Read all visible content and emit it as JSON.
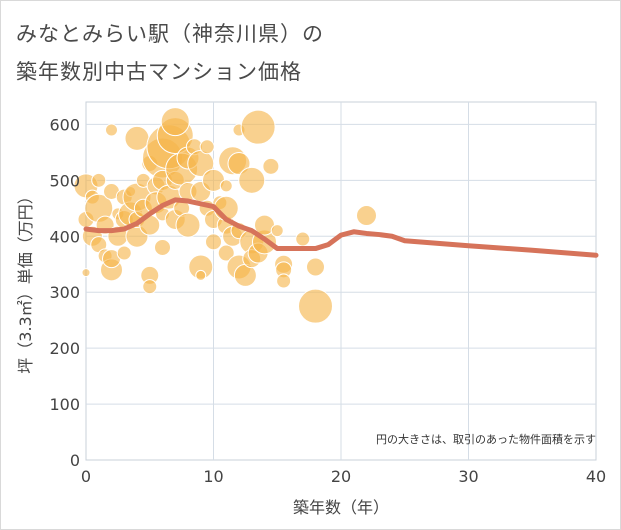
{
  "title_line1": "みなとみらい駅（神奈川県）の",
  "title_line2": "築年数別中古マンション価格",
  "chart_data": {
    "type": "scatter",
    "xlabel": "築年数（年）",
    "ylabel": "坪（3.3㎡）単価（万円）",
    "xlim": [
      0,
      40
    ],
    "ylim": [
      0,
      640
    ],
    "xticks": [
      0,
      10,
      20,
      30,
      40
    ],
    "yticks": [
      0,
      100,
      200,
      300,
      400,
      500,
      600
    ],
    "note": "円の大きさは、取引のあった物件面積を示す",
    "colors": {
      "bubble": "#f5b54a",
      "trend": "#d6735a",
      "grid": "#d5dde6",
      "plot_border": "#c8d0da"
    },
    "trend_line": {
      "x": [
        0,
        1,
        2,
        3,
        4,
        5,
        6,
        7,
        8,
        9,
        10,
        11,
        12,
        13,
        14,
        15,
        16,
        17,
        18,
        19,
        20,
        21,
        22,
        23,
        24,
        25,
        30,
        35,
        40
      ],
      "y": [
        413,
        410,
        410,
        413,
        423,
        440,
        455,
        465,
        463,
        458,
        453,
        430,
        418,
        410,
        395,
        378,
        378,
        378,
        378,
        385,
        402,
        408,
        405,
        403,
        400,
        392,
        383,
        375,
        366
      ]
    },
    "bubbles": [
      {
        "x": 0,
        "y": 490,
        "s": 12
      },
      {
        "x": 0,
        "y": 335,
        "s": 4
      },
      {
        "x": 0,
        "y": 430,
        "s": 8
      },
      {
        "x": 0.5,
        "y": 400,
        "s": 10
      },
      {
        "x": 0.5,
        "y": 470,
        "s": 7
      },
      {
        "x": 1,
        "y": 450,
        "s": 14
      },
      {
        "x": 1,
        "y": 385,
        "s": 8
      },
      {
        "x": 1,
        "y": 500,
        "s": 7
      },
      {
        "x": 1.5,
        "y": 420,
        "s": 9
      },
      {
        "x": 1.5,
        "y": 365,
        "s": 7
      },
      {
        "x": 2,
        "y": 340,
        "s": 11
      },
      {
        "x": 2,
        "y": 360,
        "s": 9
      },
      {
        "x": 2,
        "y": 590,
        "s": 6
      },
      {
        "x": 2,
        "y": 480,
        "s": 8
      },
      {
        "x": 2.5,
        "y": 400,
        "s": 10
      },
      {
        "x": 2.5,
        "y": 440,
        "s": 6
      },
      {
        "x": 3,
        "y": 430,
        "s": 9
      },
      {
        "x": 3,
        "y": 370,
        "s": 7
      },
      {
        "x": 3,
        "y": 470,
        "s": 8
      },
      {
        "x": 3.5,
        "y": 440,
        "s": 12
      },
      {
        "x": 3.5,
        "y": 480,
        "s": 5
      },
      {
        "x": 4,
        "y": 575,
        "s": 12
      },
      {
        "x": 4,
        "y": 470,
        "s": 14
      },
      {
        "x": 4,
        "y": 400,
        "s": 11
      },
      {
        "x": 4,
        "y": 430,
        "s": 8
      },
      {
        "x": 4.5,
        "y": 500,
        "s": 7
      },
      {
        "x": 4.5,
        "y": 450,
        "s": 9
      },
      {
        "x": 5,
        "y": 330,
        "s": 9
      },
      {
        "x": 5,
        "y": 310,
        "s": 7
      },
      {
        "x": 5,
        "y": 420,
        "s": 10
      },
      {
        "x": 5,
        "y": 530,
        "s": 8
      },
      {
        "x": 5.5,
        "y": 490,
        "s": 9
      },
      {
        "x": 5.5,
        "y": 460,
        "s": 11
      },
      {
        "x": 6,
        "y": 540,
        "s": 20
      },
      {
        "x": 6,
        "y": 500,
        "s": 10
      },
      {
        "x": 6,
        "y": 380,
        "s": 8
      },
      {
        "x": 6,
        "y": 440,
        "s": 7
      },
      {
        "x": 6.5,
        "y": 560,
        "s": 22
      },
      {
        "x": 6.5,
        "y": 470,
        "s": 12
      },
      {
        "x": 7,
        "y": 580,
        "s": 18
      },
      {
        "x": 7,
        "y": 605,
        "s": 14
      },
      {
        "x": 7,
        "y": 430,
        "s": 10
      },
      {
        "x": 7,
        "y": 500,
        "s": 9
      },
      {
        "x": 7.5,
        "y": 520,
        "s": 16
      },
      {
        "x": 7.5,
        "y": 450,
        "s": 8
      },
      {
        "x": 8,
        "y": 540,
        "s": 11
      },
      {
        "x": 8,
        "y": 420,
        "s": 12
      },
      {
        "x": 8,
        "y": 480,
        "s": 9
      },
      {
        "x": 8.5,
        "y": 560,
        "s": 8
      },
      {
        "x": 9,
        "y": 345,
        "s": 12
      },
      {
        "x": 9,
        "y": 530,
        "s": 13
      },
      {
        "x": 9,
        "y": 480,
        "s": 10
      },
      {
        "x": 9,
        "y": 330,
        "s": 5
      },
      {
        "x": 9.5,
        "y": 450,
        "s": 8
      },
      {
        "x": 9.5,
        "y": 560,
        "s": 7
      },
      {
        "x": 10,
        "y": 430,
        "s": 9
      },
      {
        "x": 10,
        "y": 390,
        "s": 8
      },
      {
        "x": 10,
        "y": 500,
        "s": 11
      },
      {
        "x": 10.5,
        "y": 460,
        "s": 7
      },
      {
        "x": 11,
        "y": 420,
        "s": 9
      },
      {
        "x": 11,
        "y": 450,
        "s": 12
      },
      {
        "x": 11,
        "y": 370,
        "s": 8
      },
      {
        "x": 11,
        "y": 490,
        "s": 6
      },
      {
        "x": 11.5,
        "y": 535,
        "s": 14
      },
      {
        "x": 11.5,
        "y": 400,
        "s": 10
      },
      {
        "x": 12,
        "y": 530,
        "s": 11
      },
      {
        "x": 12,
        "y": 345,
        "s": 12
      },
      {
        "x": 12,
        "y": 590,
        "s": 6
      },
      {
        "x": 12,
        "y": 410,
        "s": 8
      },
      {
        "x": 12.5,
        "y": 330,
        "s": 11
      },
      {
        "x": 13,
        "y": 500,
        "s": 13
      },
      {
        "x": 13,
        "y": 390,
        "s": 12
      },
      {
        "x": 13,
        "y": 360,
        "s": 9
      },
      {
        "x": 13.5,
        "y": 595,
        "s": 17
      },
      {
        "x": 13.5,
        "y": 370,
        "s": 10
      },
      {
        "x": 14,
        "y": 390,
        "s": 12
      },
      {
        "x": 14,
        "y": 420,
        "s": 10
      },
      {
        "x": 14.5,
        "y": 525,
        "s": 8
      },
      {
        "x": 15,
        "y": 410,
        "s": 6
      },
      {
        "x": 15.5,
        "y": 350,
        "s": 9
      },
      {
        "x": 15.5,
        "y": 340,
        "s": 8
      },
      {
        "x": 15.5,
        "y": 320,
        "s": 7
      },
      {
        "x": 17,
        "y": 395,
        "s": 7
      },
      {
        "x": 18,
        "y": 345,
        "s": 9
      },
      {
        "x": 18,
        "y": 275,
        "s": 17
      },
      {
        "x": 22,
        "y": 437,
        "s": 10
      }
    ]
  }
}
